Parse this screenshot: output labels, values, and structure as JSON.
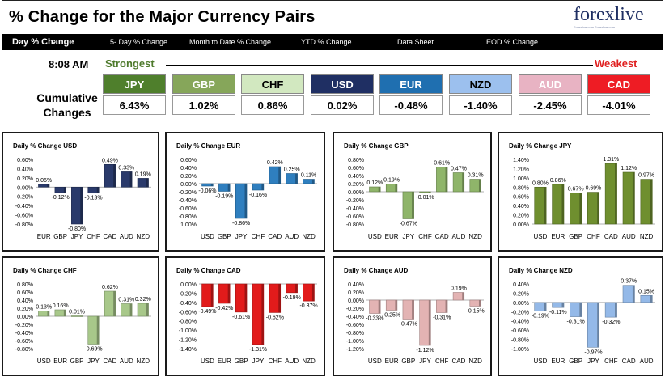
{
  "header": {
    "title": "% Change for the Major Currency Pairs",
    "logo_text": "forexlive",
    "logo_tagline": "Forexlive.com Forexlive.com"
  },
  "nav": {
    "items": [
      "Day % Change",
      "5- Day % Change",
      "Month to Date % Change",
      "YTD % Change",
      "Data Sheet",
      "EOD % Change"
    ]
  },
  "summary": {
    "time": "8:08 AM",
    "strongest_label": "Strongest",
    "weakest_label": "Weakest",
    "cumulative_label_1": "Cumulative",
    "cumulative_label_2": "Changes",
    "currencies": [
      {
        "code": "JPY",
        "value": "6.43%",
        "color": "#4f7f2c",
        "text": "#ffffff"
      },
      {
        "code": "GBP",
        "value": "1.02%",
        "color": "#86a65a",
        "text": "#ffffff"
      },
      {
        "code": "CHF",
        "value": "0.86%",
        "color": "#d2e8c0",
        "text": "#000000"
      },
      {
        "code": "USD",
        "value": "0.02%",
        "color": "#1f2f63",
        "text": "#ffffff"
      },
      {
        "code": "EUR",
        "value": "-0.48%",
        "color": "#1f6fb0",
        "text": "#ffffff"
      },
      {
        "code": "NZD",
        "value": "-1.40%",
        "color": "#9cc0ee",
        "text": "#000000"
      },
      {
        "code": "AUD",
        "value": "-2.45%",
        "color": "#e8b3c3",
        "text": "#ffffff"
      },
      {
        "code": "CAD",
        "value": "-4.01%",
        "color": "#ee1c24",
        "text": "#ffffff"
      }
    ]
  },
  "colors": {
    "USD": "#2a3a6b",
    "EUR": "#2f7fbf",
    "GBP": "#8fb56a",
    "JPY": "#6f8f2f",
    "CHF": "#a8c88a",
    "CAD": "#e21b1b",
    "AUD": "#e3b3b3",
    "NZD": "#94b9e8"
  },
  "chart_data": [
    {
      "type": "bar",
      "title": "Daily % Change USD",
      "base": "USD",
      "categories": [
        "EUR",
        "GBP",
        "JPY",
        "CHF",
        "CAD",
        "AUD",
        "NZD"
      ],
      "values": [
        0.06,
        -0.12,
        -0.8,
        -0.13,
        0.49,
        0.33,
        0.19
      ],
      "labels": [
        "0.06%",
        "-0.12%",
        "-0.80%",
        "-0.13%",
        "0.49%",
        "0.33%",
        "0.19%"
      ],
      "yticks": [
        "0.60%",
        "0.40%",
        "0.20%",
        "0.00%",
        "-0.20%",
        "-0.40%",
        "-0.60%",
        "-0.80%"
      ],
      "ylim": [
        -0.8,
        0.6
      ]
    },
    {
      "type": "bar",
      "title": "Daily % Change EUR",
      "base": "EUR",
      "categories": [
        "USD",
        "GBP",
        "JPY",
        "CHF",
        "CAD",
        "AUD",
        "NZD"
      ],
      "values": [
        -0.06,
        -0.19,
        -0.86,
        -0.16,
        0.42,
        0.25,
        0.11
      ],
      "labels": [
        "-0.06%",
        "-0.19%",
        "-0.86%",
        "-0.16%",
        "0.42%",
        "0.25%",
        "0.11%"
      ],
      "yticks": [
        "0.60%",
        "0.40%",
        "0.20%",
        "0.00%",
        "-0.20%",
        "-0.40%",
        "-0.60%",
        "-0.80%",
        "1.00%"
      ],
      "ylim": [
        -1.0,
        0.6
      ]
    },
    {
      "type": "bar",
      "title": "Daily % Change GBP",
      "base": "GBP",
      "categories": [
        "USD",
        "EUR",
        "JPY",
        "CHF",
        "CAD",
        "AUD",
        "NZD"
      ],
      "values": [
        0.12,
        0.19,
        -0.67,
        -0.01,
        0.61,
        0.47,
        0.31
      ],
      "labels": [
        "0.12%",
        "0.19%",
        "-0.67%",
        "-0.01%",
        "0.61%",
        "0.47%",
        "0.31%"
      ],
      "yticks": [
        "0.80%",
        "0.60%",
        "0.40%",
        "0.20%",
        "0.00%",
        "-0.20%",
        "-0.40%",
        "-0.60%",
        "-0.80%"
      ],
      "ylim": [
        -0.8,
        0.8
      ]
    },
    {
      "type": "bar",
      "title": "Daily % Change JPY",
      "base": "JPY",
      "categories": [
        "USD",
        "EUR",
        "GBP",
        "CHF",
        "CAD",
        "AUD",
        "NZD"
      ],
      "values": [
        0.8,
        0.86,
        0.67,
        0.69,
        1.31,
        1.12,
        0.97
      ],
      "labels": [
        "0.80%",
        "0.86%",
        "0.67%",
        "0.69%",
        "1.31%",
        "1.12%",
        "0.97%"
      ],
      "yticks": [
        "1.40%",
        "1.20%",
        "1.00%",
        "0.80%",
        "0.60%",
        "0.40%",
        "0.20%",
        "0.00%"
      ],
      "ylim": [
        0,
        1.4
      ]
    },
    {
      "type": "bar",
      "title": "Daily % Change CHF",
      "base": "CHF",
      "categories": [
        "USD",
        "EUR",
        "GBP",
        "JPY",
        "CAD",
        "AUD",
        "NZD"
      ],
      "values": [
        0.13,
        0.16,
        0.01,
        -0.69,
        0.62,
        0.31,
        0.32
      ],
      "labels": [
        "0.13%",
        "0.16%",
        "0.01%",
        "-0.69%",
        "0.62%",
        "0.31%",
        "0.32%"
      ],
      "yticks": [
        "0.80%",
        "0.60%",
        "0.40%",
        "0.20%",
        "0.00%",
        "-0.20%",
        "-0.40%",
        "-0.60%",
        "-0.80%"
      ],
      "ylim": [
        -0.8,
        0.8
      ]
    },
    {
      "type": "bar",
      "title": "Daily % Change CAD",
      "base": "CAD",
      "categories": [
        "USD",
        "EUR",
        "GBP",
        "JPY",
        "CHF",
        "AUD",
        "NZD"
      ],
      "values": [
        -0.49,
        -0.42,
        -0.61,
        -1.31,
        -0.62,
        -0.19,
        -0.37
      ],
      "labels": [
        "-0.49%",
        "-0.42%",
        "-0.61%",
        "-1.31%",
        "-0.62%",
        "-0.19%",
        "-0.37%"
      ],
      "yticks": [
        "0.00%",
        "-0.20%",
        "-0.40%",
        "-0.60%",
        "-0.80%",
        "-1.00%",
        "-1.20%",
        "-1.40%"
      ],
      "ylim": [
        -1.4,
        0
      ]
    },
    {
      "type": "bar",
      "title": "Daily % Change AUD",
      "base": "AUD",
      "categories": [
        "USD",
        "EUR",
        "GBP",
        "JPY",
        "CHF",
        "CAD",
        "NZD"
      ],
      "values": [
        -0.33,
        -0.25,
        -0.47,
        -1.12,
        -0.31,
        0.19,
        -0.15
      ],
      "labels": [
        "-0.33%",
        "-0.25%",
        "-0.47%",
        "-1.12%",
        "-0.31%",
        "0.19%",
        "-0.15%"
      ],
      "yticks": [
        "0.40%",
        "0.20%",
        "0.00%",
        "-0.20%",
        "-0.40%",
        "-0.60%",
        "-0.80%",
        "-1.00%",
        "-1.20%"
      ],
      "ylim": [
        -1.2,
        0.4
      ]
    },
    {
      "type": "bar",
      "title": "Daily % Change NZD",
      "base": "NZD",
      "categories": [
        "USD",
        "EUR",
        "GBP",
        "JPY",
        "CHF",
        "CAD",
        "AUD"
      ],
      "values": [
        -0.19,
        -0.11,
        -0.31,
        -0.97,
        -0.32,
        0.37,
        0.15
      ],
      "labels": [
        "-0.19%",
        "-0.11%",
        "-0.31%",
        "-0.97%",
        "-0.32%",
        "0.37%",
        "0.15%"
      ],
      "yticks": [
        "0.40%",
        "0.20%",
        "0.00%",
        "-0.20%",
        "-0.40%",
        "-0.60%",
        "-0.80%",
        "-1.00%"
      ],
      "ylim": [
        -1.0,
        0.4
      ]
    }
  ]
}
